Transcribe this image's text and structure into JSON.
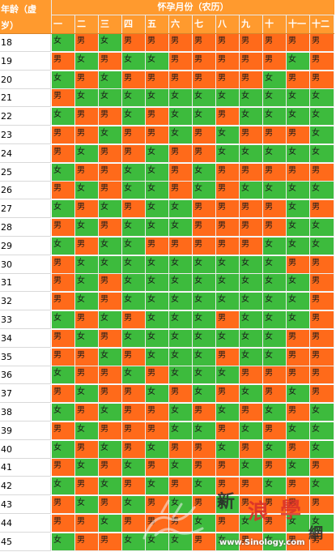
{
  "header": {
    "age_label_line1": "年龄（虚",
    "age_label_line2": "岁）",
    "title": "怀孕月份（农历）",
    "months": [
      "一",
      "二",
      "三",
      "四",
      "五",
      "六",
      "七",
      "八",
      "九",
      "十",
      "十一",
      "十二"
    ]
  },
  "rows": [
    {
      "age": "18",
      "cells": [
        "女",
        "男",
        "女",
        "男",
        "男",
        "男",
        "男",
        "男",
        "男",
        "男",
        "男",
        "男"
      ]
    },
    {
      "age": "19",
      "cells": [
        "男",
        "女",
        "男",
        "女",
        "女",
        "男",
        "男",
        "男",
        "男",
        "男",
        "女",
        "男"
      ]
    },
    {
      "age": "20",
      "cells": [
        "女",
        "男",
        "女",
        "男",
        "男",
        "男",
        "男",
        "男",
        "男",
        "女",
        "男",
        "男"
      ]
    },
    {
      "age": "21",
      "cells": [
        "男",
        "女",
        "女",
        "女",
        "女",
        "女",
        "女",
        "女",
        "女",
        "女",
        "女",
        "女"
      ]
    },
    {
      "age": "22",
      "cells": [
        "女",
        "男",
        "男",
        "女",
        "男",
        "女",
        "女",
        "男",
        "女",
        "女",
        "女",
        "女"
      ]
    },
    {
      "age": "23",
      "cells": [
        "男",
        "男",
        "女",
        "男",
        "男",
        "女",
        "男",
        "女",
        "男",
        "男",
        "男",
        "女"
      ]
    },
    {
      "age": "24",
      "cells": [
        "男",
        "女",
        "男",
        "男",
        "女",
        "男",
        "男",
        "女",
        "女",
        "女",
        "女",
        "女"
      ]
    },
    {
      "age": "25",
      "cells": [
        "女",
        "男",
        "男",
        "女",
        "女",
        "男",
        "女",
        "男",
        "男",
        "男",
        "男",
        "男"
      ]
    },
    {
      "age": "26",
      "cells": [
        "男",
        "女",
        "男",
        "女",
        "女",
        "男",
        "女",
        "男",
        "女",
        "女",
        "女",
        "女"
      ]
    },
    {
      "age": "27",
      "cells": [
        "女",
        "男",
        "女",
        "男",
        "女",
        "女",
        "男",
        "男",
        "男",
        "男",
        "女",
        "男"
      ]
    },
    {
      "age": "28",
      "cells": [
        "男",
        "女",
        "男",
        "女",
        "女",
        "女",
        "男",
        "男",
        "男",
        "男",
        "女",
        "女"
      ]
    },
    {
      "age": "29",
      "cells": [
        "女",
        "男",
        "女",
        "女",
        "男",
        "男",
        "男",
        "男",
        "男",
        "女",
        "女",
        "女"
      ]
    },
    {
      "age": "30",
      "cells": [
        "男",
        "女",
        "女",
        "女",
        "女",
        "女",
        "女",
        "女",
        "女",
        "女",
        "男",
        "男"
      ]
    },
    {
      "age": "31",
      "cells": [
        "男",
        "女",
        "男",
        "女",
        "女",
        "女",
        "女",
        "女",
        "女",
        "女",
        "女",
        "男"
      ]
    },
    {
      "age": "32",
      "cells": [
        "男",
        "女",
        "男",
        "女",
        "女",
        "女",
        "女",
        "女",
        "女",
        "女",
        "女",
        "男"
      ]
    },
    {
      "age": "33",
      "cells": [
        "女",
        "男",
        "女",
        "男",
        "女",
        "女",
        "女",
        "男",
        "女",
        "女",
        "女",
        "男"
      ]
    },
    {
      "age": "34",
      "cells": [
        "男",
        "女",
        "男",
        "女",
        "女",
        "女",
        "女",
        "女",
        "女",
        "女",
        "男",
        "男"
      ]
    },
    {
      "age": "35",
      "cells": [
        "男",
        "男",
        "女",
        "男",
        "女",
        "女",
        "女",
        "男",
        "女",
        "女",
        "男",
        "男"
      ]
    },
    {
      "age": "36",
      "cells": [
        "女",
        "男",
        "男",
        "女",
        "男",
        "女",
        "女",
        "女",
        "男",
        "男",
        "男",
        "男"
      ]
    },
    {
      "age": "37",
      "cells": [
        "男",
        "女",
        "男",
        "男",
        "女",
        "男",
        "女",
        "男",
        "女",
        "男",
        "女",
        "男"
      ]
    },
    {
      "age": "38",
      "cells": [
        "女",
        "男",
        "女",
        "男",
        "男",
        "女",
        "男",
        "女",
        "男",
        "女",
        "男",
        "女"
      ]
    },
    {
      "age": "39",
      "cells": [
        "男",
        "女",
        "男",
        "男",
        "男",
        "女",
        "女",
        "男",
        "女",
        "男",
        "女",
        "女"
      ]
    },
    {
      "age": "40",
      "cells": [
        "女",
        "男",
        "女",
        "男",
        "女",
        "男",
        "男",
        "女",
        "男",
        "女",
        "男",
        "女"
      ]
    },
    {
      "age": "41",
      "cells": [
        "男",
        "女",
        "男",
        "女",
        "男",
        "女",
        "男",
        "男",
        "女",
        "男",
        "女",
        "男"
      ]
    },
    {
      "age": "42",
      "cells": [
        "女",
        "男",
        "女",
        "男",
        "女",
        "男",
        "女",
        "男",
        "男",
        "女",
        "男",
        "女"
      ]
    },
    {
      "age": "43",
      "cells": [
        "男",
        "女",
        "男",
        "女",
        "男",
        "女",
        "男",
        "女",
        "男",
        "男",
        "男",
        "男"
      ]
    },
    {
      "age": "44",
      "cells": [
        "男",
        "男",
        "女",
        "男",
        "男",
        "男",
        "女",
        "男",
        "女",
        "男",
        "女",
        "女"
      ]
    },
    {
      "age": "45",
      "cells": [
        "女",
        "男",
        "男",
        "女",
        "女",
        "女",
        "男",
        "女",
        "男",
        "女",
        "男",
        "男"
      ]
    }
  ],
  "colors": {
    "header": "#ff9a2e",
    "male": "#ff6a1a",
    "female": "#3dbb3d"
  },
  "watermark": {
    "char1": "新",
    "char2": "浪",
    "char3": "學",
    "char4": "網",
    "url": "www.Sinology.com"
  }
}
